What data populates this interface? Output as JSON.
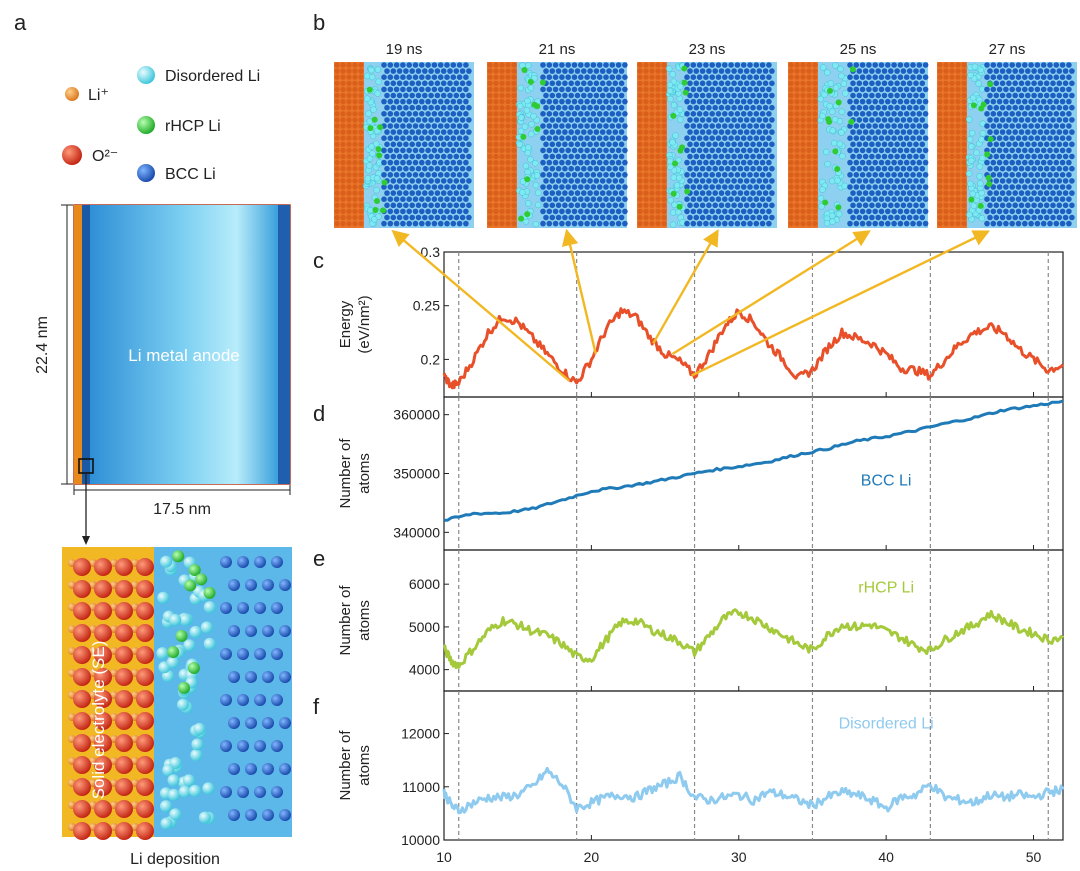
{
  "panel_a": {
    "letter": "a",
    "legend": [
      {
        "label": "Li⁺",
        "color": "#e8891e"
      },
      {
        "label": "O²⁻",
        "color": "#d9301c"
      },
      {
        "label": "Disordered Li",
        "color": "#55d8e6"
      },
      {
        "label": "rHCP Li",
        "color": "#2ecc32"
      },
      {
        "label": "BCC Li",
        "color": "#1f5fc8"
      }
    ],
    "height_label": "22.4 nm",
    "width_label": "17.5 nm",
    "anode_label": "Li metal anode",
    "se_label": "Solid electrolyte (SE)",
    "bottom_caption": "Li deposition"
  },
  "panel_b": {
    "letter": "b",
    "snapshots": [
      "19 ns",
      "21 ns",
      "23 ns",
      "25 ns",
      "27 ns"
    ]
  },
  "colors": {
    "energy": "#e8502a",
    "bcc": "#1f7ab8",
    "rhcp": "#a4c93a",
    "disordered": "#8fcaef",
    "arrow": "#f2b824",
    "grid_dash": "#8a8a8a"
  },
  "chart_data": [
    {
      "id": "c",
      "letter": "c",
      "type": "line",
      "ylabel": "Energy",
      "ylabel2": "(eV/nm²)",
      "ylim": [
        0.165,
        0.3
      ],
      "yticks": [
        0.2,
        0.25,
        0.3
      ],
      "ytick_labels": [
        "0.2",
        "0.25",
        "0.3"
      ],
      "series": [
        {
          "name": "Energy",
          "x": [
            10,
            10.5,
            11,
            12,
            13,
            14,
            15,
            16,
            17,
            18,
            19,
            20,
            21,
            22,
            23,
            24,
            25,
            26,
            27,
            28,
            29,
            30,
            31,
            32,
            33,
            34,
            35,
            36,
            37,
            38,
            39,
            40,
            41,
            42,
            43,
            44,
            45,
            46,
            47,
            48,
            49,
            50,
            51,
            52
          ],
          "values": [
            0.185,
            0.175,
            0.178,
            0.2,
            0.225,
            0.24,
            0.235,
            0.22,
            0.205,
            0.19,
            0.178,
            0.2,
            0.228,
            0.245,
            0.24,
            0.22,
            0.205,
            0.198,
            0.185,
            0.205,
            0.23,
            0.245,
            0.235,
            0.215,
            0.2,
            0.182,
            0.19,
            0.21,
            0.225,
            0.22,
            0.215,
            0.205,
            0.192,
            0.19,
            0.185,
            0.2,
            0.215,
            0.225,
            0.23,
            0.225,
            0.21,
            0.2,
            0.19,
            0.195
          ]
        }
      ],
      "vlines": [
        11,
        19,
        27,
        35,
        43,
        51
      ]
    },
    {
      "id": "d",
      "letter": "d",
      "type": "line",
      "ylabel": "Number of",
      "ylabel2": "atoms",
      "ylim": [
        337000,
        363000
      ],
      "yticks": [
        340000,
        350000,
        360000
      ],
      "ytick_labels": [
        "340000",
        "350000",
        "360000"
      ],
      "series": [
        {
          "name": "BCC Li",
          "x": [
            10,
            12,
            14,
            16,
            18,
            20,
            22,
            24,
            26,
            28,
            30,
            32,
            34,
            36,
            38,
            40,
            42,
            44,
            46,
            48,
            50,
            52
          ],
          "values": [
            342000,
            343200,
            343300,
            344000,
            345500,
            347000,
            347700,
            348500,
            349500,
            350500,
            351200,
            352000,
            353200,
            354200,
            355500,
            356300,
            357300,
            358500,
            359500,
            360800,
            361500,
            362300
          ]
        }
      ],
      "series_label": "BCC Li",
      "vlines": [
        11,
        19,
        27,
        35,
        43,
        51
      ]
    },
    {
      "id": "e",
      "letter": "e",
      "type": "line",
      "ylabel": "Number of",
      "ylabel2": "atoms",
      "ylim": [
        3500,
        6800
      ],
      "yticks": [
        4000,
        5000,
        6000
      ],
      "ytick_labels": [
        "4000",
        "5000",
        "6000"
      ],
      "series": [
        {
          "name": "rHCP Li",
          "x": [
            10,
            10.5,
            11,
            12,
            13,
            14,
            15,
            16,
            17,
            18,
            19,
            20,
            21,
            22,
            23,
            24,
            25,
            26,
            27,
            28,
            29,
            30,
            31,
            32,
            33,
            34,
            35,
            36,
            37,
            38,
            39,
            40,
            41,
            42,
            43,
            44,
            45,
            46,
            47,
            48,
            49,
            50,
            51,
            52
          ],
          "values": [
            4500,
            4200,
            4100,
            4500,
            4900,
            5150,
            5050,
            4900,
            4800,
            4600,
            4300,
            4250,
            4700,
            5100,
            5150,
            4950,
            4800,
            4650,
            4400,
            4800,
            5200,
            5350,
            5200,
            5000,
            4800,
            4600,
            4450,
            4800,
            5050,
            5000,
            5050,
            4900,
            4750,
            4550,
            4450,
            4700,
            4900,
            5050,
            5300,
            5150,
            4950,
            4850,
            4700,
            4750
          ]
        }
      ],
      "series_label": "rHCP Li",
      "vlines": [
        11,
        19,
        27,
        35,
        43,
        51
      ]
    },
    {
      "id": "f",
      "letter": "f",
      "type": "line",
      "ylabel": "Number of",
      "ylabel2": "atoms",
      "ylim": [
        10000,
        12800
      ],
      "yticks": [
        10000,
        11000,
        12000
      ],
      "ytick_labels": [
        "10000",
        "11000",
        "12000"
      ],
      "series": [
        {
          "name": "Disordered Li",
          "x": [
            10,
            10.5,
            11,
            12,
            13,
            14,
            15,
            16,
            17,
            18,
            19,
            20,
            21,
            22,
            23,
            24,
            25,
            26,
            27,
            28,
            29,
            30,
            31,
            32,
            33,
            34,
            35,
            36,
            37,
            38,
            39,
            40,
            41,
            42,
            43,
            44,
            45,
            46,
            47,
            48,
            49,
            50,
            51,
            52
          ],
          "values": [
            10900,
            10650,
            10550,
            10700,
            10800,
            10800,
            10850,
            11000,
            11300,
            11050,
            10600,
            10700,
            10800,
            10850,
            10800,
            10950,
            11050,
            11200,
            10800,
            10750,
            10800,
            10850,
            10750,
            10900,
            10850,
            10750,
            10650,
            10800,
            10900,
            10850,
            10750,
            10600,
            10800,
            10850,
            11050,
            10800,
            10750,
            10700,
            10850,
            10800,
            10850,
            10800,
            10900,
            10950
          ]
        }
      ],
      "series_label": "Disordered Li",
      "vlines": [
        11,
        19,
        27,
        35,
        43,
        51
      ]
    }
  ],
  "x_axis": {
    "xlim": [
      10,
      52
    ],
    "ticks": [
      10,
      20,
      30,
      40,
      50
    ],
    "tick_labels": [
      "10",
      "20",
      "30",
      "40",
      "50"
    ]
  },
  "arrows": [
    {
      "from_x": 18.5,
      "from_val": 0.18,
      "to_snapshot": 0
    },
    {
      "from_x": 20.3,
      "from_val": 0.205,
      "to_snapshot": 1
    },
    {
      "from_x": 24.2,
      "from_val": 0.215,
      "to_snapshot": 2
    },
    {
      "from_x": 25.5,
      "from_val": 0.205,
      "to_snapshot": 3
    },
    {
      "from_x": 26.8,
      "from_val": 0.185,
      "to_snapshot": 4
    }
  ]
}
